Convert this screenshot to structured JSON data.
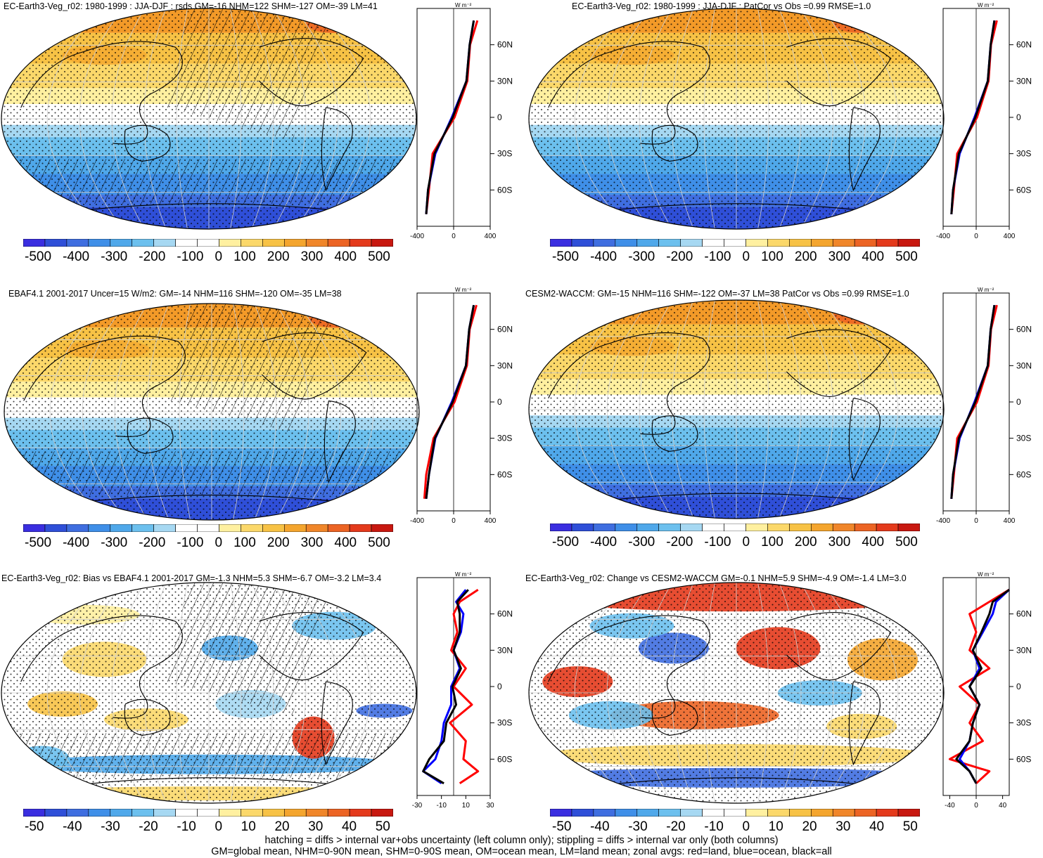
{
  "panels": [
    {
      "title": "EC-Earth3-Veg_r02: 1980-1999 : JJA-DJF : rsds GM=-16 NHM=122 SHM=-127 OM=-39 LM=41",
      "colorbar": [
        "-500",
        "-400",
        "-300",
        "-200",
        "-100",
        "0",
        "100",
        "200",
        "300",
        "400",
        "500"
      ],
      "zonal_xticks": [
        "-400",
        "0",
        "400"
      ],
      "zonal_units": "W m⁻²"
    },
    {
      "title": "EC-Earth3-Veg_r02: 1980-1999 : JJA-DJF : PatCor vs Obs =0.99 RMSE=1.0",
      "colorbar": [
        "-500",
        "-400",
        "-300",
        "-200",
        "-100",
        "0",
        "100",
        "200",
        "300",
        "400",
        "500"
      ],
      "zonal_xticks": [
        "-400",
        "0",
        "400"
      ],
      "zonal_units": "W m⁻²"
    },
    {
      "title": "EBAF4.1 2001-2017 Uncer=15 W/m2: GM=-14 NHM=116 SHM=-120 OM=-35 LM=38",
      "colorbar": [
        "-500",
        "-400",
        "-300",
        "-200",
        "-100",
        "0",
        "100",
        "200",
        "300",
        "400",
        "500"
      ],
      "zonal_xticks": [
        "-400",
        "0",
        "400"
      ],
      "zonal_units": "W m⁻²"
    },
    {
      "title": "CESM2-WACCM: GM=-15 NHM=116 SHM=-122 OM=-37 LM=38 PatCor vs Obs =0.99 RMSE=1.0",
      "colorbar": [
        "-500",
        "-400",
        "-300",
        "-200",
        "-100",
        "0",
        "100",
        "200",
        "300",
        "400",
        "500"
      ],
      "zonal_xticks": [
        "-400",
        "0",
        "400"
      ],
      "zonal_units": "W m⁻²"
    },
    {
      "title": "EC-Earth3-Veg_r02: Bias vs EBAF4.1 2001-2017 GM=-1.3 NHM=5.3 SHM=-6.7 OM=-3.2 LM=3.4",
      "colorbar": [
        "-50",
        "-40",
        "-30",
        "-20",
        "-10",
        "0",
        "10",
        "20",
        "30",
        "40",
        "50"
      ],
      "zonal_xticks": [
        "-30",
        "-10",
        "10",
        "30"
      ],
      "zonal_units": "W m⁻²"
    },
    {
      "title": "EC-Earth3-Veg_r02: Change vs CESM2-WACCM GM=-0.1 NHM=5.9 SHM=-4.9 OM=-1.4 LM=3.0",
      "colorbar": [
        "-50",
        "-40",
        "-30",
        "-20",
        "-10",
        "0",
        "10",
        "20",
        "30",
        "40",
        "50"
      ],
      "zonal_xticks": [
        "-40",
        "0",
        "40"
      ],
      "zonal_units": "W m⁻²"
    }
  ],
  "lat_ticks": [
    "60N",
    "30N",
    "0",
    "30S",
    "60S"
  ],
  "footer": {
    "line1": "hatching = diffs > internal var+obs uncertainty (left column only); stippling = diffs > internal var only (both columns)",
    "line2": "GM=global mean, NHM=0-90N mean, SHM=0-90S mean, OM=ocean mean, LM=land mean; zonal avgs: red=land, blue=ocean, black=all"
  },
  "colors": {
    "seq_top": [
      "#3a2ee0",
      "#2f4fd8",
      "#3f6ee0",
      "#3f8fe8",
      "#4fa8ea",
      "#6cc0ee",
      "#a6d8f2",
      "#ffffff",
      "#ffffff",
      "#fff0a0",
      "#fbd86a",
      "#f7c245",
      "#f4a52e",
      "#f0862a",
      "#ec6424",
      "#e43a1c",
      "#c81810"
    ],
    "land": "red",
    "ocean": "blue",
    "all": "black"
  },
  "chart_data": [
    {
      "type": "map",
      "title": "EC-Earth3-Veg_r02: 1980-1999 : JJA-DJF : rsds GM=-16 NHM=122 SHM=-127 OM=-39 LM=41",
      "colorbar_range": [
        -500,
        500
      ],
      "zonal": {
        "lat": [
          80,
          60,
          30,
          0,
          -30,
          -60,
          -80
        ],
        "land": [
          260,
          180,
          150,
          10,
          -230,
          -270,
          -300
        ],
        "ocean": [
          220,
          175,
          140,
          -20,
          -200,
          -280,
          -300
        ],
        "all": [
          220,
          175,
          140,
          -10,
          -210,
          -280,
          -300
        ],
        "xlim": [
          -400,
          400
        ]
      }
    },
    {
      "type": "map",
      "title": "EC-Earth3-Veg_r02: 1980-1999 : JJA-DJF : PatCor vs Obs =0.99 RMSE=1.0",
      "colorbar_range": [
        -500,
        500
      ],
      "zonal": {
        "lat": [
          80,
          60,
          30,
          0,
          -30,
          -60,
          -80
        ],
        "land": [
          250,
          180,
          150,
          10,
          -230,
          -270,
          -300
        ],
        "ocean": [
          220,
          175,
          140,
          -20,
          -200,
          -280,
          -300
        ],
        "all": [
          220,
          175,
          140,
          -10,
          -210,
          -280,
          -300
        ],
        "xlim": [
          -400,
          400
        ]
      }
    },
    {
      "type": "map",
      "title": "EBAF4.1 2001-2017 Uncer=15 W/m2: GM=-14 NHM=116 SHM=-120 OM=-35 LM=38",
      "colorbar_range": [
        -500,
        500
      ],
      "zonal": {
        "lat": [
          80,
          60,
          30,
          0,
          -30,
          -60,
          -80
        ],
        "land": [
          250,
          175,
          145,
          10,
          -220,
          -300,
          -320
        ],
        "ocean": [
          220,
          170,
          135,
          -20,
          -200,
          -270,
          -300
        ],
        "all": [
          220,
          170,
          135,
          -10,
          -205,
          -270,
          -300
        ],
        "xlim": [
          -400,
          400
        ]
      }
    },
    {
      "type": "map",
      "title": "CESM2-WACCM: GM=-15 NHM=116 SHM=-122 OM=-37 LM=38 PatCor vs Obs =0.99 RMSE=1.0",
      "colorbar_range": [
        -500,
        500
      ],
      "zonal": {
        "lat": [
          80,
          60,
          30,
          0,
          -30,
          -60,
          -80
        ],
        "land": [
          250,
          180,
          150,
          10,
          -230,
          -270,
          -300
        ],
        "ocean": [
          220,
          175,
          140,
          -20,
          -200,
          -280,
          -300
        ],
        "all": [
          220,
          175,
          140,
          -10,
          -210,
          -280,
          -300
        ],
        "xlim": [
          -400,
          400
        ]
      }
    },
    {
      "type": "map",
      "title": "EC-Earth3-Veg_r02: Bias vs EBAF4.1 2001-2017 GM=-1.3 NHM=5.3 SHM=-6.7 OM=-3.2 LM=3.4",
      "colorbar_range": [
        -50,
        50
      ],
      "zonal": {
        "lat": [
          80,
          70,
          60,
          45,
          30,
          15,
          0,
          -15,
          -30,
          -45,
          -60,
          -70,
          -80
        ],
        "land": [
          20,
          5,
          0,
          3,
          -2,
          10,
          0,
          15,
          -3,
          10,
          8,
          20,
          5
        ],
        "ocean": [
          10,
          2,
          8,
          6,
          0,
          5,
          -2,
          -2,
          -8,
          -10,
          -15,
          -25,
          -10
        ],
        "all": [
          12,
          3,
          5,
          5,
          0,
          6,
          -1,
          2,
          -6,
          -8,
          -20,
          -25,
          -8
        ],
        "xlim": [
          -30,
          30
        ]
      }
    },
    {
      "type": "map",
      "title": "EC-Earth3-Veg_r02: Change vs CESM2-WACCM GM=-0.1 NHM=5.9 SHM=-4.9 OM=-1.4 LM=3.0",
      "colorbar_range": [
        -50,
        50
      ],
      "zonal": {
        "lat": [
          80,
          70,
          60,
          45,
          30,
          15,
          0,
          -15,
          -30,
          -45,
          -60,
          -70,
          -80
        ],
        "land": [
          50,
          20,
          -10,
          0,
          -10,
          20,
          -25,
          5,
          -10,
          10,
          -40,
          20,
          0
        ],
        "ocean": [
          50,
          30,
          25,
          10,
          -5,
          5,
          -10,
          5,
          -5,
          -10,
          -25,
          -10,
          0
        ],
        "all": [
          50,
          25,
          20,
          8,
          -5,
          8,
          -10,
          5,
          -5,
          -10,
          -30,
          -10,
          0
        ],
        "xlim": [
          -50,
          50
        ]
      }
    }
  ]
}
